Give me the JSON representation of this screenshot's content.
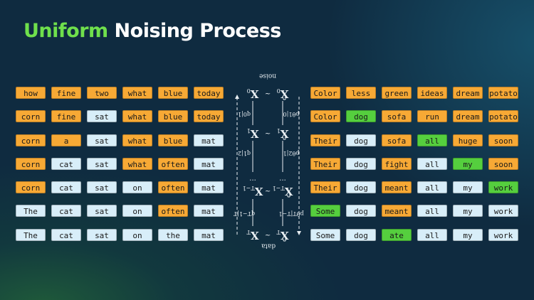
{
  "title": {
    "accent": "Uniform",
    "rest": " Noising Process"
  },
  "colors": {
    "orange": "#f7a935",
    "light_blue": "#d8eef9",
    "green": "#55cf3e",
    "title_green": "#6fe04c"
  },
  "left_grid": [
    [
      {
        "t": "how",
        "s": "O"
      },
      {
        "t": "fine",
        "s": "O"
      },
      {
        "t": "two",
        "s": "O"
      },
      {
        "t": "what",
        "s": "O"
      },
      {
        "t": "blue",
        "s": "O"
      },
      {
        "t": "today",
        "s": "O"
      }
    ],
    [
      {
        "t": "corn",
        "s": "O"
      },
      {
        "t": "fine",
        "s": "O"
      },
      {
        "t": "sat",
        "s": "B"
      },
      {
        "t": "what",
        "s": "O"
      },
      {
        "t": "blue",
        "s": "O"
      },
      {
        "t": "today",
        "s": "O"
      }
    ],
    [
      {
        "t": "corn",
        "s": "O"
      },
      {
        "t": "a",
        "s": "O"
      },
      {
        "t": "sat",
        "s": "B"
      },
      {
        "t": "what",
        "s": "O"
      },
      {
        "t": "blue",
        "s": "O"
      },
      {
        "t": "mat",
        "s": "B"
      }
    ],
    [
      {
        "t": "corn",
        "s": "O"
      },
      {
        "t": "cat",
        "s": "B"
      },
      {
        "t": "sat",
        "s": "B"
      },
      {
        "t": "what",
        "s": "O"
      },
      {
        "t": "often",
        "s": "O"
      },
      {
        "t": "mat",
        "s": "B"
      }
    ],
    [
      {
        "t": "corn",
        "s": "O"
      },
      {
        "t": "cat",
        "s": "B"
      },
      {
        "t": "sat",
        "s": "B"
      },
      {
        "t": "on",
        "s": "B"
      },
      {
        "t": "often",
        "s": "O"
      },
      {
        "t": "mat",
        "s": "B"
      }
    ],
    [
      {
        "t": "The",
        "s": "B"
      },
      {
        "t": "cat",
        "s": "B"
      },
      {
        "t": "sat",
        "s": "B"
      },
      {
        "t": "on",
        "s": "B"
      },
      {
        "t": "often",
        "s": "O"
      },
      {
        "t": "mat",
        "s": "B"
      }
    ],
    [
      {
        "t": "The",
        "s": "B"
      },
      {
        "t": "cat",
        "s": "B"
      },
      {
        "t": "sat",
        "s": "B"
      },
      {
        "t": "on",
        "s": "B"
      },
      {
        "t": "the",
        "s": "B"
      },
      {
        "t": "mat",
        "s": "B"
      }
    ]
  ],
  "right_grid": [
    [
      {
        "t": "Color",
        "s": "O"
      },
      {
        "t": "less",
        "s": "O"
      },
      {
        "t": "green",
        "s": "O"
      },
      {
        "t": "ideas",
        "s": "O"
      },
      {
        "t": "dream",
        "s": "O"
      },
      {
        "t": "potato",
        "s": "O"
      }
    ],
    [
      {
        "t": "Color",
        "s": "O"
      },
      {
        "t": "dog",
        "s": "G"
      },
      {
        "t": "sofa",
        "s": "O"
      },
      {
        "t": "run",
        "s": "O"
      },
      {
        "t": "dream",
        "s": "O"
      },
      {
        "t": "potato",
        "s": "O"
      }
    ],
    [
      {
        "t": "Their",
        "s": "O"
      },
      {
        "t": "dog",
        "s": "B"
      },
      {
        "t": "sofa",
        "s": "O"
      },
      {
        "t": "all",
        "s": "G"
      },
      {
        "t": "huge",
        "s": "O"
      },
      {
        "t": "soon",
        "s": "O"
      }
    ],
    [
      {
        "t": "Their",
        "s": "O"
      },
      {
        "t": "dog",
        "s": "B"
      },
      {
        "t": "fight",
        "s": "O"
      },
      {
        "t": "all",
        "s": "B"
      },
      {
        "t": "my",
        "s": "G"
      },
      {
        "t": "soon",
        "s": "O"
      }
    ],
    [
      {
        "t": "Their",
        "s": "O"
      },
      {
        "t": "dog",
        "s": "B"
      },
      {
        "t": "meant",
        "s": "O"
      },
      {
        "t": "all",
        "s": "B"
      },
      {
        "t": "my",
        "s": "B"
      },
      {
        "t": "work",
        "s": "G"
      }
    ],
    [
      {
        "t": "Some",
        "s": "G"
      },
      {
        "t": "dog",
        "s": "B"
      },
      {
        "t": "meant",
        "s": "O"
      },
      {
        "t": "all",
        "s": "B"
      },
      {
        "t": "my",
        "s": "B"
      },
      {
        "t": "work",
        "s": "B"
      }
    ],
    [
      {
        "t": "Some",
        "s": "B"
      },
      {
        "t": "dog",
        "s": "B"
      },
      {
        "t": "ate",
        "s": "G"
      },
      {
        "t": "all",
        "s": "B"
      },
      {
        "t": "my",
        "s": "B"
      },
      {
        "t": "work",
        "s": "B"
      }
    ]
  ],
  "diagram": {
    "noise_label": "noise",
    "data_label": "data",
    "x_symbol": "X",
    "x_hat_symbol": "X̂",
    "subscripts": [
      "0",
      "1",
      "T−1",
      "T"
    ],
    "ellipsis": "···",
    "q_labels": [
      "q0|1",
      "q1|2",
      "qT−1|T"
    ],
    "p_labels": [
      "pθ1|0",
      "pθ2|1",
      "pθT|T−1"
    ]
  }
}
